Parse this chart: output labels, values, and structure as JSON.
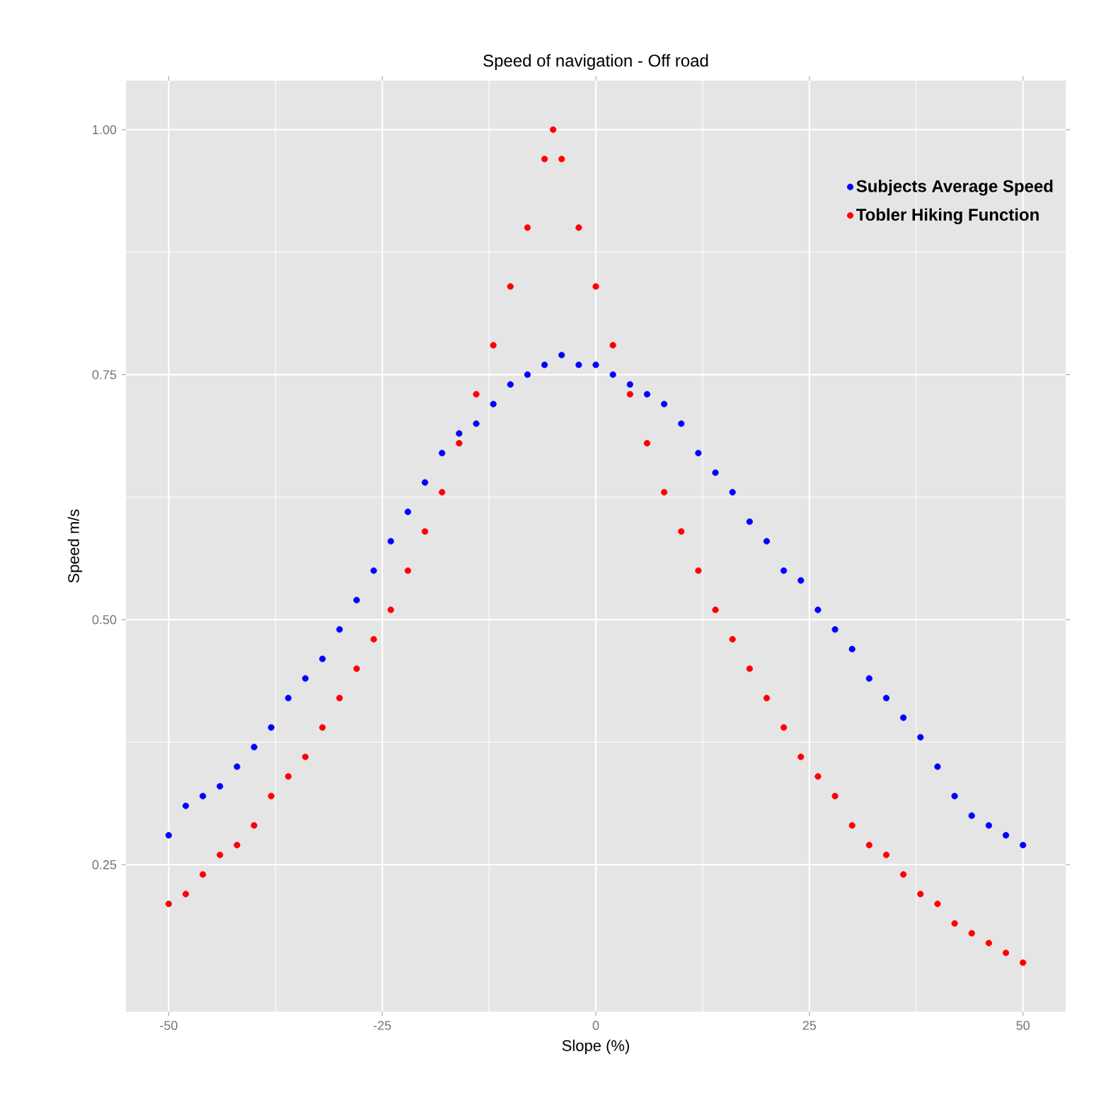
{
  "chart_data": {
    "type": "scatter",
    "title": "Speed of navigation - Off road",
    "xlabel": "Slope (%)",
    "ylabel": "Speed m/s",
    "xlim": [
      -55,
      55
    ],
    "ylim": [
      0.1,
      1.05
    ],
    "xticks": [
      -50,
      -25,
      0,
      25,
      50
    ],
    "yticks": [
      {
        "value": 0.25,
        "label": "0.25"
      },
      {
        "value": 0.5,
        "label": "0.50"
      },
      {
        "value": 0.75,
        "label": "0.75"
      },
      {
        "value": 1.0,
        "label": "1.00"
      }
    ],
    "grid": true,
    "legend": "top right",
    "marker": "circle",
    "series": [
      {
        "name": "Subjects Average Speed",
        "color": "#0000ff",
        "x": [
          -50,
          -48,
          -46,
          -44,
          -42,
          -40,
          -38,
          -36,
          -34,
          -32,
          -30,
          -28,
          -26,
          -24,
          -22,
          -20,
          -18,
          -16,
          -14,
          -12,
          -10,
          -8,
          -6,
          -4,
          -2,
          0,
          2,
          4,
          6,
          8,
          10,
          12,
          14,
          16,
          18,
          20,
          22,
          24,
          26,
          28,
          30,
          32,
          34,
          36,
          38,
          40,
          42,
          44,
          46,
          48,
          50
        ],
        "values": [
          0.28,
          0.31,
          0.32,
          0.33,
          0.35,
          0.37,
          0.39,
          0.42,
          0.44,
          0.46,
          0.49,
          0.52,
          0.55,
          0.58,
          0.61,
          0.64,
          0.67,
          0.69,
          0.7,
          0.72,
          0.74,
          0.75,
          0.76,
          0.77,
          0.76,
          0.76,
          0.75,
          0.74,
          0.73,
          0.72,
          0.7,
          0.67,
          0.65,
          0.63,
          0.6,
          0.58,
          0.55,
          0.54,
          0.51,
          0.49,
          0.47,
          0.44,
          0.42,
          0.4,
          0.38,
          0.35,
          0.32,
          0.3,
          0.29,
          0.28,
          0.27
        ]
      },
      {
        "name": "Tobler Hiking Function",
        "color": "#ff0000",
        "x": [
          -50,
          -48,
          -46,
          -44,
          -42,
          -40,
          -38,
          -36,
          -34,
          -32,
          -30,
          -28,
          -26,
          -24,
          -22,
          -20,
          -18,
          -16,
          -14,
          -12,
          -10,
          -8,
          -6,
          -5,
          -4,
          -2,
          0,
          2,
          4,
          6,
          8,
          10,
          12,
          14,
          16,
          18,
          20,
          22,
          24,
          26,
          28,
          30,
          32,
          34,
          36,
          38,
          40,
          42,
          44,
          46,
          48,
          50
        ],
        "values": [
          0.21,
          0.22,
          0.24,
          0.26,
          0.27,
          0.29,
          0.32,
          0.34,
          0.36,
          0.39,
          0.42,
          0.45,
          0.48,
          0.51,
          0.55,
          0.59,
          0.63,
          0.68,
          0.73,
          0.78,
          0.84,
          0.9,
          0.97,
          1.0,
          0.97,
          0.9,
          0.84,
          0.78,
          0.73,
          0.68,
          0.63,
          0.59,
          0.55,
          0.51,
          0.48,
          0.45,
          0.42,
          0.39,
          0.36,
          0.34,
          0.32,
          0.29,
          0.27,
          0.26,
          0.24,
          0.22,
          0.21,
          0.19,
          0.18,
          0.17,
          0.16,
          0.15
        ]
      }
    ]
  }
}
